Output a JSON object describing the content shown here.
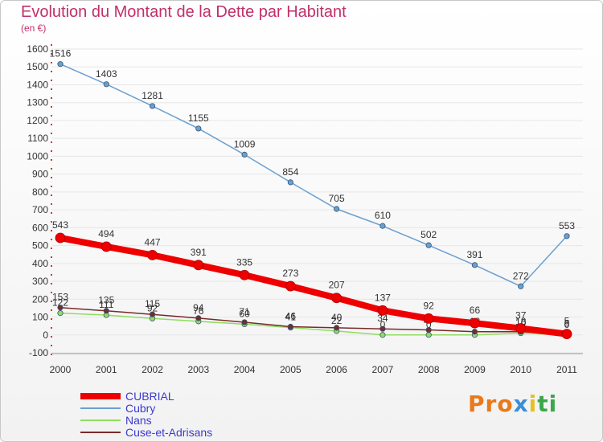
{
  "chart_data": {
    "type": "line",
    "title": "Evolution du Montant de la Dette par Habitant",
    "subtitle": "(en €)",
    "categories": [
      "2000",
      "2001",
      "2002",
      "2003",
      "2004",
      "2005",
      "2006",
      "2007",
      "2008",
      "2009",
      "2010",
      "2011"
    ],
    "ylim": [
      -100,
      1600
    ],
    "yticks": [
      -100,
      0,
      100,
      200,
      300,
      400,
      500,
      600,
      700,
      800,
      900,
      1000,
      1100,
      1200,
      1300,
      1400,
      1500,
      1600
    ],
    "series": [
      {
        "name": "CUBRIAL",
        "color": "#ee0000",
        "values": [
          543,
          494,
          447,
          391,
          335,
          273,
          207,
          137,
          92,
          66,
          37,
          5
        ]
      },
      {
        "name": "Cubry",
        "color": "#6aa0cf",
        "values": [
          1516,
          1403,
          1281,
          1155,
          1009,
          854,
          705,
          610,
          502,
          391,
          272,
          553
        ]
      },
      {
        "name": "Nans",
        "color": "#90dd60",
        "values": [
          122,
          111,
          92,
          76,
          60,
          41,
          22,
          0,
          0,
          0,
          10,
          0
        ]
      },
      {
        "name": "Cuse-et-Adrisans",
        "color": "#7a2a2a",
        "values": [
          153,
          135,
          115,
          94,
          71,
          46,
          40,
          34,
          28,
          18,
          18,
          5
        ]
      }
    ]
  },
  "legend": [
    "CUBRIAL",
    "Cubry",
    "Nans",
    "Cuse-et-Adrisans"
  ],
  "logo": [
    "Pro",
    "x",
    "i",
    "ti"
  ]
}
